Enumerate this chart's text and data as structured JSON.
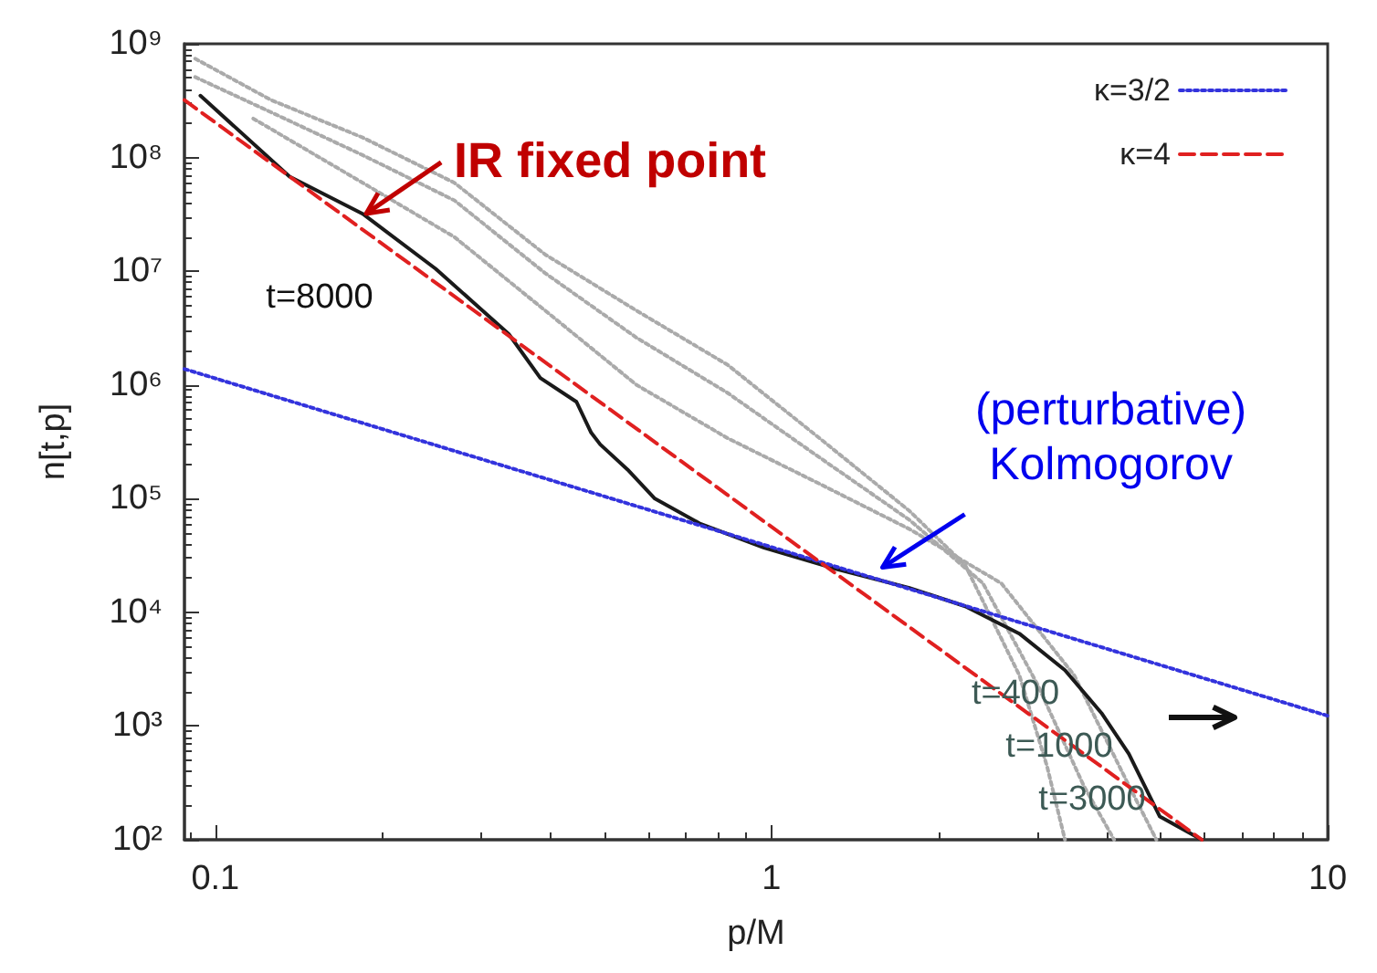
{
  "chart_data": {
    "type": "line",
    "xlabel": "p/M",
    "ylabel": "n[t,p]",
    "log": "xy",
    "grid": false,
    "legend": "top right",
    "marker": "none",
    "xlim": [
      0.088,
      10
    ],
    "xticks": [
      0.1,
      1,
      10
    ],
    "ylim": [
      100,
      1000000000
    ],
    "yticks": [
      {
        "value": 100,
        "label": "10²"
      },
      {
        "value": 1000,
        "label": "10³"
      },
      {
        "value": 10000,
        "label": "10⁴"
      },
      {
        "value": 100000,
        "label": "10⁵"
      },
      {
        "value": 1000000,
        "label": "10⁶"
      },
      {
        "value": 10000000,
        "label": "10⁷"
      },
      {
        "value": 100000000,
        "label": "10⁸"
      },
      {
        "value": 1000000000,
        "label": "10⁹"
      }
    ],
    "series": [
      {
        "color": "#aaaaaa",
        "line_style": "dotted",
        "x": [
          0.092,
          0.126,
          0.184,
          0.269,
          0.392,
          0.572,
          0.834,
          1.22,
          1.77,
          2.23,
          2.79,
          3.13,
          3.37
        ],
        "values": [
          740000000,
          320000000,
          150000000,
          60000000,
          14000000,
          4500000,
          1500000,
          340000,
          78000,
          26000,
          2800,
          440,
          100
        ]
      },
      {
        "color": "#aaaaaa",
        "line_style": "dotted",
        "x": [
          0.092,
          0.126,
          0.184,
          0.269,
          0.392,
          0.572,
          0.834,
          1.22,
          1.77,
          2.4,
          3.01,
          3.64,
          4.13
        ],
        "values": [
          510000000,
          250000000,
          105000000,
          42000000,
          9600000,
          2600000,
          850000,
          230000,
          65000,
          18000,
          2300,
          300,
          100
        ]
      },
      {
        "color": "#aaaaaa",
        "line_style": "dotted",
        "x": [
          0.117,
          0.184,
          0.269,
          0.392,
          0.572,
          0.834,
          1.22,
          1.77,
          2.59,
          3.5,
          4.39,
          4.92
        ],
        "values": [
          220000000,
          60000000,
          20000000,
          4500000,
          1000000,
          340000,
          135000,
          54000,
          18000,
          2800,
          300,
          100
        ]
      },
      {
        "color": "#1a1a1a",
        "line_style": "solid",
        "x": [
          0.094,
          0.136,
          0.184,
          0.249,
          0.29,
          0.337,
          0.384,
          0.446,
          0.474,
          0.492,
          0.551,
          0.617,
          0.745,
          0.97,
          1.31,
          1.77,
          2.23,
          2.79,
          3.37,
          3.92,
          4.39,
          4.99,
          5.94
        ],
        "values": [
          350000000,
          68000000,
          32000000,
          10500000,
          5400000,
          2800000,
          1150000,
          710000,
          380000,
          300000,
          180000,
          100000,
          60000,
          37000,
          24000,
          16400,
          11300,
          6500,
          3100,
          1300,
          570,
          160,
          100
        ]
      },
      {
        "name": "κ=3/2",
        "color": "#3333dd",
        "line_style": "dotted",
        "x": [
          0.088,
          10
        ],
        "values": [
          1380000,
          1230
        ]
      },
      {
        "name": "κ=4",
        "color": "#e02020",
        "line_style": "dashed",
        "x": [
          0.088,
          5.94
        ],
        "values": [
          320000000,
          100
        ]
      }
    ],
    "annotations": [
      {
        "text": "IR fixed point",
        "x": 0.184,
        "y": 31000000
      },
      {
        "text": "(perturbative)\nKolmogorov",
        "x": 1.56,
        "y": 24000
      },
      "t=8000",
      "t=400",
      "t=1000",
      "t=3000"
    ]
  }
}
